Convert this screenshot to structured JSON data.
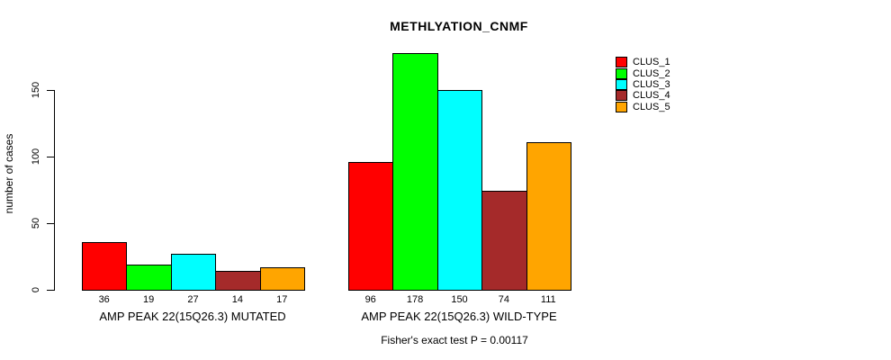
{
  "chart_data": {
    "type": "bar",
    "title": "METHLYATION_CNMF",
    "ylabel": "number of cases",
    "xlabel": "",
    "footnote": "Fisher's exact test P = 0.00117",
    "categories": [
      "AMP PEAK 22(15Q26.3) MUTATED",
      "AMP PEAK 22(15Q26.3) WILD-TYPE"
    ],
    "series": [
      {
        "name": "CLUS_1",
        "color": "#FF0000",
        "values": [
          36,
          96
        ]
      },
      {
        "name": "CLUS_2",
        "color": "#00FF00",
        "values": [
          19,
          178
        ]
      },
      {
        "name": "CLUS_3",
        "color": "#00FFFF",
        "values": [
          27,
          150
        ]
      },
      {
        "name": "CLUS_4",
        "color": "#A52A2A",
        "values": [
          14,
          74
        ]
      },
      {
        "name": "CLUS_5",
        "color": "#FFA500",
        "values": [
          17,
          111
        ]
      }
    ],
    "yticks": [
      0,
      50,
      100,
      150
    ],
    "ylim": [
      0,
      180
    ],
    "grid": false,
    "legend_position": "top-right",
    "bar_value_labels_shown": true
  }
}
